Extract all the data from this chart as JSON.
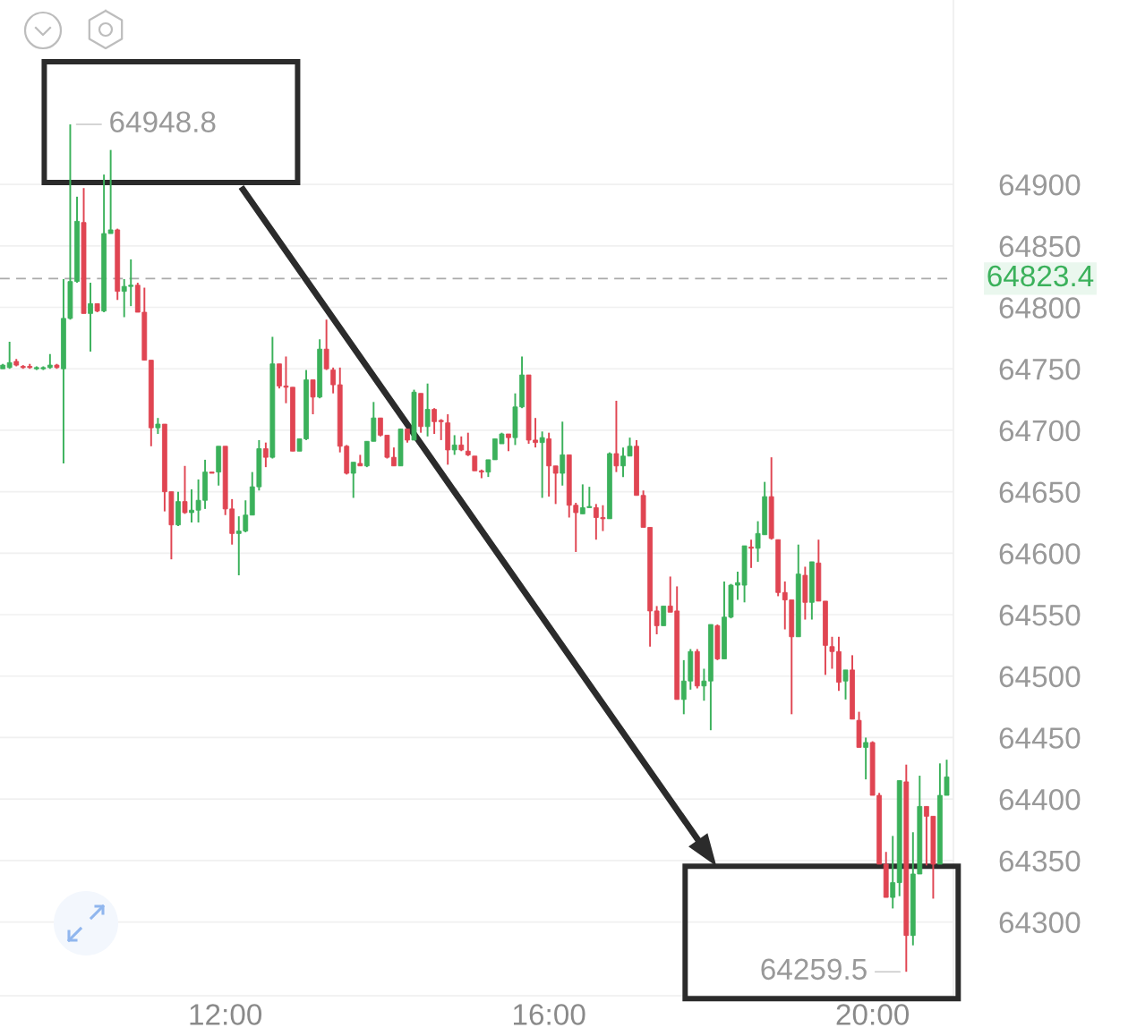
{
  "chart_data": {
    "type": "candlestick",
    "x": [
      9.25,
      9.333,
      9.417,
      9.5,
      9.583,
      9.667,
      9.75,
      9.833,
      9.917,
      10,
      10.083,
      10.167,
      10.25,
      10.333,
      10.417,
      10.5,
      10.583,
      10.667,
      10.75,
      10.833,
      10.917,
      11,
      11.083,
      11.167,
      11.25,
      11.333,
      11.417,
      11.5,
      11.583,
      11.667,
      11.75,
      11.833,
      11.917,
      12,
      12.083,
      12.167,
      12.25,
      12.333,
      12.417,
      12.5,
      12.583,
      12.667,
      12.75,
      12.833,
      12.917,
      13,
      13.083,
      13.167,
      13.25,
      13.333,
      13.417,
      13.5,
      13.583,
      13.667,
      13.75,
      13.833,
      13.917,
      14,
      14.083,
      14.167,
      14.25,
      14.333,
      14.417,
      14.5,
      14.583,
      14.667,
      14.75,
      14.833,
      14.917,
      15,
      15.083,
      15.167,
      15.25,
      15.333,
      15.417,
      15.5,
      15.583,
      15.667,
      15.75,
      15.833,
      15.917,
      16,
      16.083,
      16.167,
      16.25,
      16.333,
      16.417,
      16.5,
      16.583,
      16.667,
      16.75,
      16.833,
      16.917,
      17,
      17.083,
      17.167,
      17.25,
      17.333,
      17.417,
      17.5,
      17.583,
      17.667,
      17.75,
      17.833,
      17.917,
      18,
      18.083,
      18.167,
      18.25,
      18.333,
      18.417,
      18.5,
      18.583,
      18.667,
      18.75,
      18.833,
      18.917,
      19,
      19.083,
      19.167,
      19.25,
      19.333,
      19.417,
      19.5,
      19.583,
      19.667,
      19.75,
      19.833,
      19.917,
      20,
      20.083,
      20.167,
      20.25,
      20.333,
      20.417,
      20.5,
      20.583,
      20.667,
      20.75,
      20.833,
      20.917
    ],
    "ohlc": [
      [
        64750,
        64754,
        64750,
        64753
      ],
      [
        64751,
        64772,
        64750,
        64755
      ],
      [
        64756,
        64758,
        64752,
        64753
      ],
      [
        64752,
        64753,
        64750,
        64751
      ],
      [
        64752,
        64754,
        64750,
        64751
      ],
      [
        64750,
        64752,
        64749,
        64751
      ],
      [
        64750,
        64752,
        64749,
        64751
      ],
      [
        64751,
        64762,
        64750,
        64753
      ],
      [
        64753,
        64754,
        64750,
        64751
      ],
      [
        64750,
        64823,
        64673,
        64791
      ],
      [
        64791,
        64948.8,
        64790,
        64821
      ],
      [
        64821,
        64890,
        64820,
        64870
      ],
      [
        64869,
        64897,
        64795,
        64795
      ],
      [
        64795,
        64820,
        64764,
        64803
      ],
      [
        64803,
        64803,
        64796,
        64797
      ],
      [
        64797,
        64908,
        64796,
        64860
      ],
      [
        64860,
        64928,
        64860,
        64863
      ],
      [
        64863,
        64864,
        64806,
        64813
      ],
      [
        64813,
        64823,
        64792,
        64817
      ],
      [
        64817,
        64839,
        64801,
        64818
      ],
      [
        64818,
        64820,
        64796,
        64796
      ],
      [
        64796,
        64816,
        64757,
        64757
      ],
      [
        64757,
        64757,
        64687,
        64702
      ],
      [
        64702,
        64710,
        64697,
        64705
      ],
      [
        64705,
        64705,
        64634,
        64650
      ],
      [
        64650,
        64650,
        64595,
        64623
      ],
      [
        64623,
        64650,
        64622,
        64642
      ],
      [
        64642,
        64671,
        64632,
        64633
      ],
      [
        64633,
        64652,
        64625,
        64635
      ],
      [
        64635,
        64660,
        64625,
        64643
      ],
      [
        64643,
        64676,
        64636,
        64666
      ],
      [
        64666,
        64666,
        64665,
        64665
      ],
      [
        64666,
        64687,
        64655,
        64687
      ],
      [
        64687,
        64687,
        64631,
        64636
      ],
      [
        64636,
        64644,
        64607,
        64616
      ],
      [
        64616,
        64630,
        64582,
        64618
      ],
      [
        64618,
        64643,
        64617,
        64631
      ],
      [
        64631,
        64666,
        64631,
        64654
      ],
      [
        64654,
        64692,
        64651,
        64685
      ],
      [
        64685,
        64690,
        64670,
        64678
      ],
      [
        64678,
        64776,
        64677,
        64754
      ],
      [
        64754,
        64754,
        64734,
        64736
      ],
      [
        64736,
        64760,
        64722,
        64735
      ],
      [
        64735,
        64735,
        64683,
        64683
      ],
      [
        64683,
        64693,
        64683,
        64693
      ],
      [
        64693,
        64749,
        64692,
        64741
      ],
      [
        64741,
        64741,
        64713,
        64727
      ],
      [
        64727,
        64774,
        64726,
        64766
      ],
      [
        64766,
        64790,
        64749,
        64750
      ],
      [
        64749,
        64751,
        64730,
        64737
      ],
      [
        64737,
        64751,
        64682,
        64687
      ],
      [
        64687,
        64688,
        64664,
        64665
      ],
      [
        64665,
        64674,
        64645,
        64674
      ],
      [
        64673,
        64680,
        64671,
        64671
      ],
      [
        64671,
        64691,
        64670,
        64691
      ],
      [
        64691,
        64723,
        64691,
        64710
      ],
      [
        64710,
        64710,
        64695,
        64696
      ],
      [
        64696,
        64696,
        64677,
        64678
      ],
      [
        64678,
        64686,
        64671,
        64671
      ],
      [
        64671,
        64701,
        64671,
        64701
      ],
      [
        64701,
        64701,
        64690,
        64692
      ],
      [
        64692,
        64733,
        64692,
        64731
      ],
      [
        64730,
        64730,
        64698,
        64703
      ],
      [
        64703,
        64738,
        64695,
        64717
      ],
      [
        64717,
        64718,
        64697,
        64707
      ],
      [
        64708,
        64709,
        64692,
        64707
      ],
      [
        64706,
        64713,
        64672,
        64684
      ],
      [
        64684,
        64696,
        64680,
        64688
      ],
      [
        64688,
        64695,
        64683,
        64684
      ],
      [
        64683,
        64698,
        64679,
        64680
      ],
      [
        64679,
        64679,
        64667,
        64667
      ],
      [
        64667,
        64668,
        64661,
        64666
      ],
      [
        64666,
        64676,
        64662,
        64676
      ],
      [
        64676,
        64693,
        64676,
        64693
      ],
      [
        64689,
        64698,
        64689,
        64697
      ],
      [
        64697,
        64697,
        64683,
        64694
      ],
      [
        64694,
        64730,
        64688,
        64719
      ],
      [
        64719,
        64760,
        64718,
        64745
      ],
      [
        64745,
        64745,
        64689,
        64692
      ],
      [
        64692,
        64710,
        64686,
        64690
      ],
      [
        64690,
        64699,
        64645,
        64694
      ],
      [
        64693,
        64698,
        64646,
        64671
      ],
      [
        64671,
        64671,
        64640,
        64665
      ],
      [
        64665,
        64707,
        64655,
        64680
      ],
      [
        64680,
        64680,
        64629,
        64639
      ],
      [
        64639,
        64641,
        64601,
        64633
      ],
      [
        64632,
        64656,
        64632,
        64637
      ],
      [
        64637,
        64654,
        64637,
        64638
      ],
      [
        64637,
        64640,
        64611,
        64629
      ],
      [
        64629,
        64639,
        64618,
        64628
      ],
      [
        64628,
        64682,
        64628,
        64681
      ],
      [
        64681,
        64724,
        64666,
        64671
      ],
      [
        64671,
        64686,
        64662,
        64679
      ],
      [
        64679,
        64694,
        64679,
        64687
      ],
      [
        64687,
        64692,
        64647,
        64647
      ],
      [
        64647,
        64651,
        64621,
        64621
      ],
      [
        64621,
        64621,
        64524,
        64553
      ],
      [
        64553,
        64557,
        64534,
        64541
      ],
      [
        64541,
        64557,
        64541,
        64557
      ],
      [
        64557,
        64581,
        64552,
        64552
      ],
      [
        64553,
        64573,
        64481,
        64481
      ],
      [
        64481,
        64513,
        64469,
        64496
      ],
      [
        64496,
        64522,
        64489,
        64520
      ],
      [
        64520,
        64522,
        64490,
        64492
      ],
      [
        64492,
        64506,
        64480,
        64496
      ],
      [
        64496,
        64542,
        64456,
        64542
      ],
      [
        64541,
        64542,
        64513,
        64514
      ],
      [
        64514,
        64577,
        64514,
        64548
      ],
      [
        64548,
        64575,
        64547,
        64574
      ],
      [
        64574,
        64585,
        64562,
        64576
      ],
      [
        64574,
        64606,
        64560,
        64606
      ],
      [
        64605,
        64611,
        64588,
        64604
      ],
      [
        64604,
        64626,
        64593,
        64616
      ],
      [
        64615,
        64658,
        64615,
        64646
      ],
      [
        64646,
        64678,
        64611,
        64612
      ],
      [
        64611,
        64611,
        64565,
        64568
      ],
      [
        64568,
        64577,
        64538,
        64562
      ],
      [
        64562,
        64562,
        64469,
        64532
      ],
      [
        64532,
        64607,
        64532,
        64583
      ],
      [
        64582,
        64589,
        64546,
        64560
      ],
      [
        64560,
        64593,
        64546,
        64593
      ],
      [
        64592,
        64611,
        64561,
        64561
      ],
      [
        64561,
        64561,
        64501,
        64525
      ],
      [
        64524,
        64532,
        64506,
        64520
      ],
      [
        64520,
        64532,
        64488,
        64495
      ],
      [
        64496,
        64505,
        64481,
        64505
      ],
      [
        64505,
        64517,
        64465,
        64465
      ],
      [
        64464,
        64471,
        64442,
        64442
      ],
      [
        64442,
        64450,
        64416,
        64446
      ],
      [
        64446,
        64447,
        64403,
        64403
      ],
      [
        64403,
        64405,
        64347,
        64347
      ],
      [
        64347,
        64357,
        64320,
        64320
      ],
      [
        64320,
        64370,
        64311,
        64332
      ],
      [
        64332,
        64415,
        64321,
        64415
      ],
      [
        64414,
        64428,
        64259.5,
        64289
      ],
      [
        64289,
        64373,
        64281,
        64339
      ],
      [
        64339,
        64419,
        64339,
        64394
      ],
      [
        64394,
        64394,
        64346,
        64386
      ],
      [
        64386,
        64386,
        64319,
        64347
      ],
      [
        64347,
        64429,
        64347,
        64403
      ],
      [
        64403,
        64432,
        64403,
        64418
      ]
    ],
    "xlim": [
      9.215,
      21.0
    ],
    "xticks": [
      {
        "value": 12,
        "label": "12:00"
      },
      {
        "value": 16,
        "label": "16:00"
      },
      {
        "value": 20,
        "label": "20:00"
      }
    ],
    "ylim": [
      64240,
      65050
    ],
    "yticks": [
      64300,
      64350,
      64400,
      64450,
      64500,
      64550,
      64600,
      64650,
      64700,
      64750,
      64800,
      64850,
      64900
    ],
    "grid": "y",
    "ref_lines": [
      {
        "axis": "y",
        "value": 64823.4,
        "label": "64823.4",
        "color": "#aaaaaa",
        "line_style": "dashed"
      }
    ],
    "annotations": [
      {
        "text": "64948.8",
        "x": 10.083,
        "y": 64948.8
      },
      {
        "text": "64259.5",
        "x": 20.417,
        "y": 64259.5
      }
    ]
  }
}
